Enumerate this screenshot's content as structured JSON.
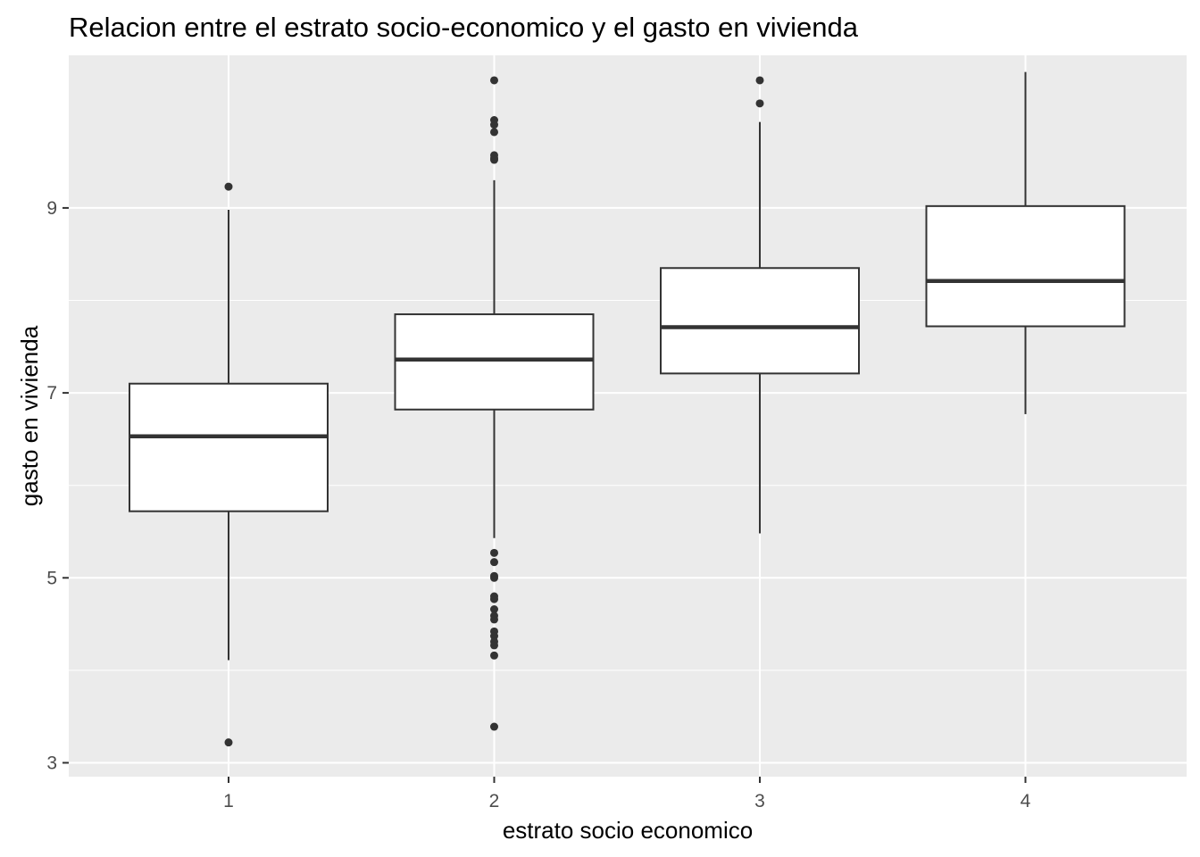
{
  "chart_data": {
    "type": "boxplot",
    "title": "Relacion entre el estrato socio-economico y el gasto en vivienda",
    "xlabel": "estrato socio economico",
    "ylabel": "gasto en vivienda",
    "categories": [
      "1",
      "2",
      "3",
      "4"
    ],
    "ylim": [
      2.85,
      10.65
    ],
    "yticks": [
      3,
      5,
      7,
      9
    ],
    "grid": true,
    "legend": "none",
    "colors": {
      "panel": "#ebebeb",
      "grid": "#ffffff",
      "box_fill": "#ffffff",
      "stroke": "#333333",
      "tick_text": "#4d4d4d"
    },
    "boxes": [
      {
        "category": "1",
        "whisker_low": 4.11,
        "q1": 5.72,
        "median": 6.53,
        "q3": 7.1,
        "whisker_high": 8.98,
        "outliers": [
          9.23,
          3.22
        ]
      },
      {
        "category": "2",
        "whisker_low": 5.43,
        "q1": 6.82,
        "median": 7.36,
        "q3": 7.85,
        "whisker_high": 9.3,
        "outliers": [
          10.38,
          9.95,
          9.9,
          9.82,
          9.57,
          9.54,
          9.52,
          5.27,
          5.17,
          5.02,
          5.0,
          4.8,
          4.77,
          4.66,
          4.59,
          4.55,
          4.42,
          4.37,
          4.31,
          4.27,
          4.16,
          3.39
        ]
      },
      {
        "category": "3",
        "whisker_low": 5.48,
        "q1": 7.21,
        "median": 7.71,
        "q3": 8.35,
        "whisker_high": 9.93,
        "outliers": [
          10.38,
          10.13
        ]
      },
      {
        "category": "4",
        "whisker_low": 6.77,
        "q1": 7.72,
        "median": 8.21,
        "q3": 9.02,
        "whisker_high": 10.47,
        "outliers": []
      }
    ]
  }
}
